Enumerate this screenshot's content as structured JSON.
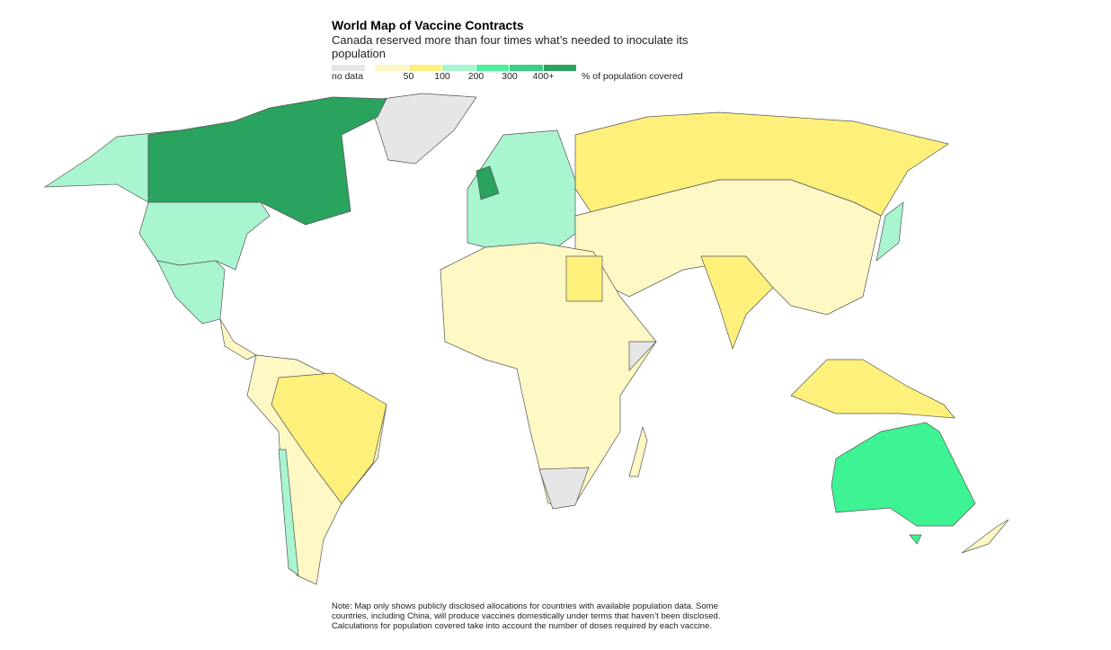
{
  "header": {
    "title": "World Map of Vaccine Contracts",
    "subtitle": "Canada reserved more than four times what’s needed to inoculate its population"
  },
  "legend": {
    "no_data": {
      "label": "no data",
      "color": "#e6e6e6"
    },
    "bins": [
      {
        "color": "#fdf8c4"
      },
      {
        "color": "#fdf07b"
      },
      {
        "color": "#a8f5cf"
      },
      {
        "color": "#4cf09a"
      },
      {
        "color": "#3dce84"
      },
      {
        "color": "#2aa35f"
      }
    ],
    "tick_labels": [
      "50",
      "100",
      "200",
      "300",
      "400+"
    ],
    "unit": "% of population covered"
  },
  "note": "Note: Map only shows publicly disclosed allocations for countries with available population data. Some countries, including China, will produce vaccines domestically under terms that haven’t been disclosed. Calculations for population covered take into account the number of doses required by each vaccine."
}
